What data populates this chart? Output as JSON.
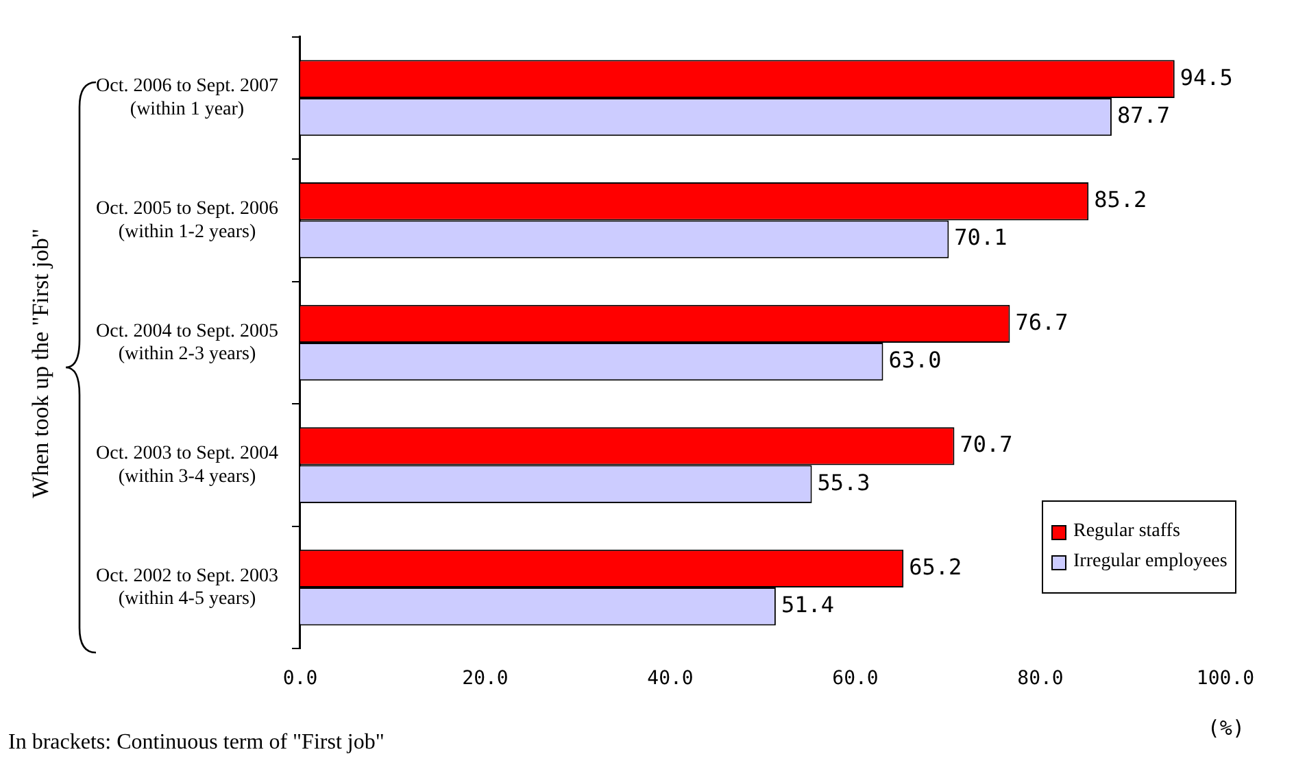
{
  "chart_data": {
    "type": "bar",
    "orientation": "horizontal",
    "ylabel": "When took up the \"First job\"",
    "xlabel": "(%)",
    "categories": [
      "Oct. 2006 to Sept. 2007\n(within 1 year)",
      "Oct. 2005 to Sept. 2006\n(within 1-2 years)",
      "Oct. 2004 to Sept. 2005\n(within 2-3 years)",
      "Oct. 2003 to Sept. 2004\n(within 3-4 years)",
      "Oct. 2002 to Sept. 2003\n(within 4-5 years)"
    ],
    "series": [
      {
        "name": "Regular staffs",
        "color": "#ff0000",
        "values": [
          94.5,
          85.2,
          76.7,
          70.7,
          65.2
        ],
        "value_labels": [
          "94.5",
          "85.2",
          "76.7",
          "70.7",
          "65.2"
        ]
      },
      {
        "name": "Irregular employees",
        "color": "#ccccff",
        "values": [
          87.7,
          70.1,
          63.0,
          55.3,
          51.4
        ],
        "value_labels": [
          "87.7",
          "70.1",
          "63.0",
          "55.3",
          "51.4"
        ]
      }
    ],
    "xlim": [
      0,
      100
    ],
    "xticks": [
      {
        "value": 0,
        "label": "0.0"
      },
      {
        "value": 20,
        "label": "20.0"
      },
      {
        "value": 40,
        "label": "40.0"
      },
      {
        "value": 60,
        "label": "60.0"
      },
      {
        "value": 80,
        "label": "80.0"
      },
      {
        "value": 100,
        "label": "100.0"
      }
    ],
    "legend": "bottom right",
    "annotations": [
      "In brackets: Continuous term of \"First job\""
    ]
  }
}
